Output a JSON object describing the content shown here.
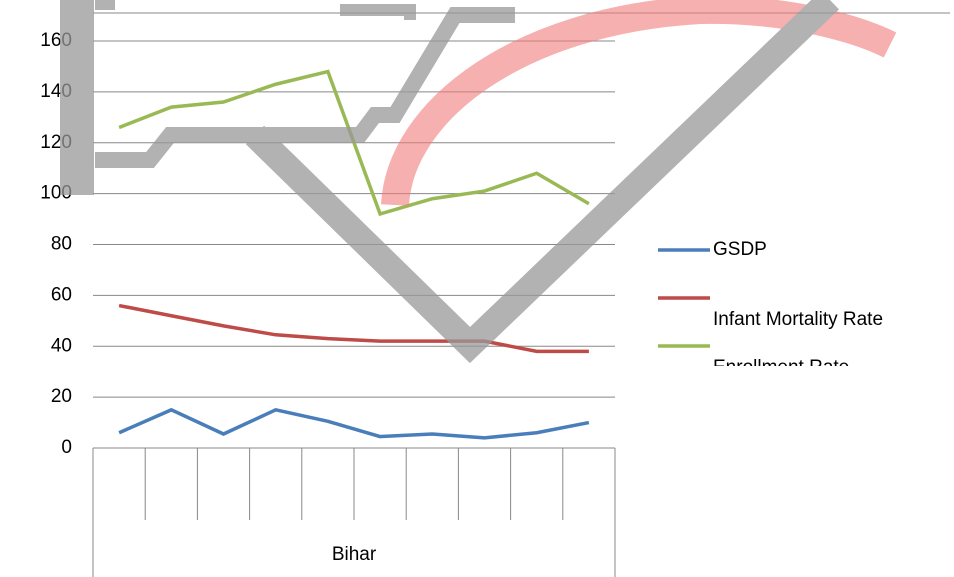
{
  "chart_data": {
    "type": "line",
    "categories": [
      null,
      null,
      null,
      null,
      null,
      null,
      null,
      null,
      null,
      null
    ],
    "group_label": "Bihar",
    "series": [
      {
        "name": "GSDP",
        "color": "#4a7ebb",
        "values": [
          6,
          15,
          5.5,
          15,
          10.5,
          4.5,
          5.5,
          4,
          6,
          10
        ]
      },
      {
        "name": "Infant Mortality Rate",
        "color": "#be4b48",
        "values": [
          56,
          52,
          48,
          44.5,
          43,
          42,
          42,
          42,
          38,
          38
        ]
      },
      {
        "name": "Enrollment Rate",
        "color": "#98b954",
        "values": [
          126,
          134,
          136,
          143,
          148,
          92,
          98,
          101,
          108,
          96
        ]
      }
    ],
    "ylim": [
      0,
      160
    ],
    "yticks": [
      0,
      20,
      40,
      60,
      80,
      100,
      120,
      140,
      160
    ],
    "grid": true,
    "legend": "right"
  }
}
